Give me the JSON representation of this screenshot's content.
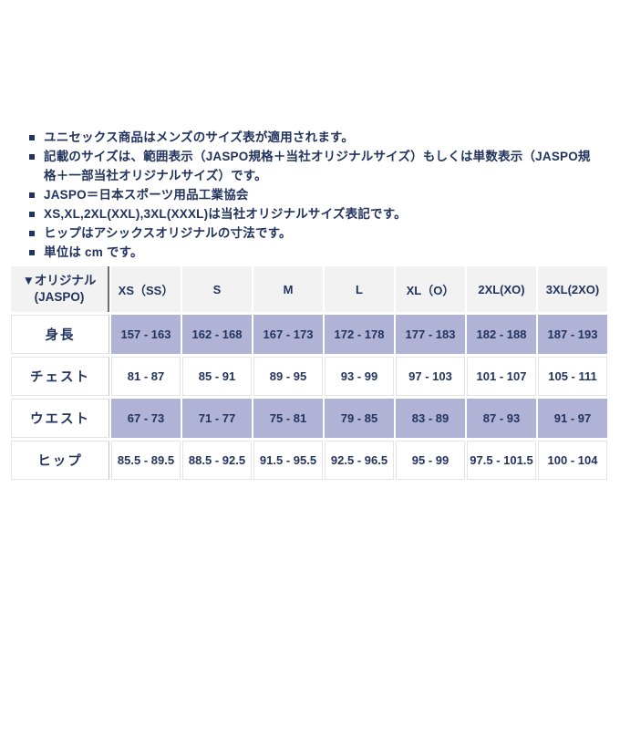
{
  "colors": {
    "text_navy": "#22335e",
    "highlight_lavender": "#b0b3d6",
    "header_gray": "#f2f2f2",
    "cell_border": "#e4e4e4",
    "corner_divider": "#6e6e6e"
  },
  "notes": {
    "items": [
      "ユニセックス商品はメンズのサイズ表が適用されます。",
      "記載のサイズは、範囲表示（JASPO規格＋当社オリジナルサイズ）もしくは単数表示（JASPO規格＋一部当社オリジナルサイズ）です。",
      "JASPO＝日本スポーツ用品工業協会",
      "XS,XL,2XL(XXL),3XL(XXXL)は当社オリジナルサイズ表記です。",
      "ヒップはアシックスオリジナルの寸法です。",
      "単位は cm です。"
    ]
  },
  "size_table": {
    "corner": {
      "line1": "▼オリジナル",
      "line2": "(JASPO)"
    },
    "columns": [
      "XS（SS）",
      "S",
      "M",
      "L",
      "XL（O）",
      "2XL(XO)",
      "3XL(2XO)"
    ],
    "rows": [
      {
        "label": "身長",
        "values": [
          "157 - 163",
          "162 - 168",
          "167 - 173",
          "172 - 178",
          "177 - 183",
          "182 - 188",
          "187 - 193"
        ]
      },
      {
        "label": "チェスト",
        "values": [
          "81 - 87",
          "85 - 91",
          "89 - 95",
          "93 - 99",
          "97 - 103",
          "101 - 107",
          "105 - 111"
        ]
      },
      {
        "label": "ウエスト",
        "values": [
          "67 - 73",
          "71 - 77",
          "75 - 81",
          "79 - 85",
          "83 - 89",
          "87 - 93",
          "91 - 97"
        ]
      },
      {
        "label": "ヒップ",
        "values": [
          "85.5 - 89.5",
          "88.5 - 92.5",
          "91.5 - 95.5",
          "92.5 - 96.5",
          "95 - 99",
          "97.5 - 101.5",
          "100 - 104"
        ]
      }
    ]
  }
}
